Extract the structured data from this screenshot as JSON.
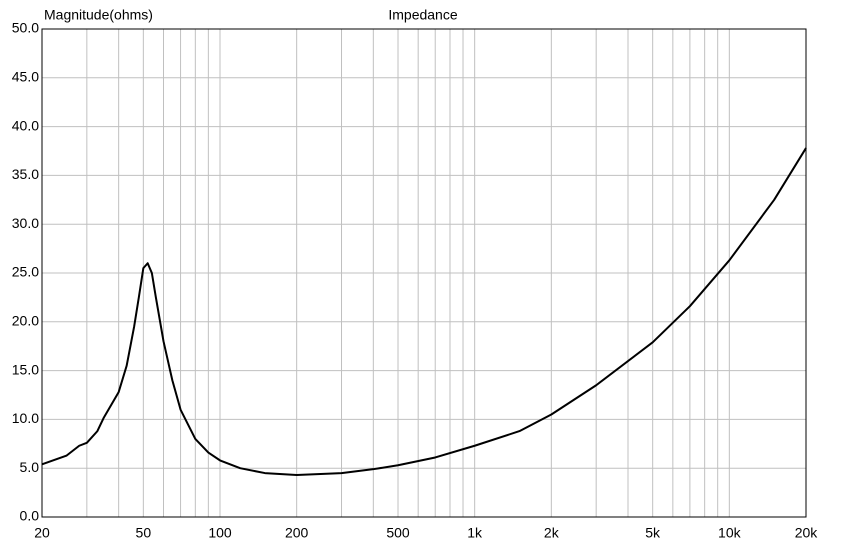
{
  "chart_data": {
    "type": "line",
    "title": "Impedance",
    "y_label": "Magnitude(ohms)",
    "x_scale": "log",
    "grid": true,
    "color": "#000000",
    "x": [
      20,
      25,
      28,
      30,
      33,
      35,
      40,
      43,
      46,
      48,
      50,
      52,
      54,
      56,
      60,
      65,
      70,
      80,
      90,
      100,
      120,
      150,
      200,
      300,
      400,
      500,
      700,
      1000,
      1500,
      2000,
      3000,
      5000,
      7000,
      10000,
      15000,
      20000
    ],
    "values": [
      5.4,
      6.3,
      7.3,
      7.6,
      8.8,
      10.2,
      12.8,
      15.5,
      19.5,
      22.5,
      25.5,
      26.0,
      25.0,
      22.5,
      18.0,
      14.0,
      11.0,
      8.0,
      6.6,
      5.8,
      5.0,
      4.5,
      4.3,
      4.5,
      4.9,
      5.3,
      6.1,
      7.3,
      8.8,
      10.5,
      13.5,
      17.9,
      21.6,
      26.3,
      32.5,
      37.8
    ],
    "xlim": [
      20,
      20000
    ],
    "ylim": [
      0,
      50
    ],
    "xticks": [
      20,
      50,
      100,
      200,
      500,
      {
        "value": 1000,
        "label": "1k"
      },
      {
        "value": 2000,
        "label": "2k"
      },
      {
        "value": 5000,
        "label": "5k"
      },
      {
        "value": 10000,
        "label": "10k"
      },
      {
        "value": 20000,
        "label": "20k"
      }
    ],
    "x_minor_ticks": [
      30,
      40,
      60,
      70,
      80,
      90,
      300,
      400,
      600,
      700,
      800,
      900,
      3000,
      4000,
      6000,
      7000,
      8000,
      9000
    ],
    "yticks": [
      {
        "value": 0,
        "label": "0.0"
      },
      {
        "value": 5,
        "label": "5.0"
      },
      {
        "value": 10,
        "label": "10.0"
      },
      {
        "value": 15,
        "label": "15.0"
      },
      {
        "value": 20,
        "label": "20.0"
      },
      {
        "value": 25,
        "label": "25.0"
      },
      {
        "value": 30,
        "label": "30.0"
      },
      {
        "value": 35,
        "label": "35.0"
      },
      {
        "value": 40,
        "label": "40.0"
      },
      {
        "value": 45,
        "label": "45.0"
      },
      {
        "value": 50,
        "label": "50.0"
      }
    ]
  }
}
